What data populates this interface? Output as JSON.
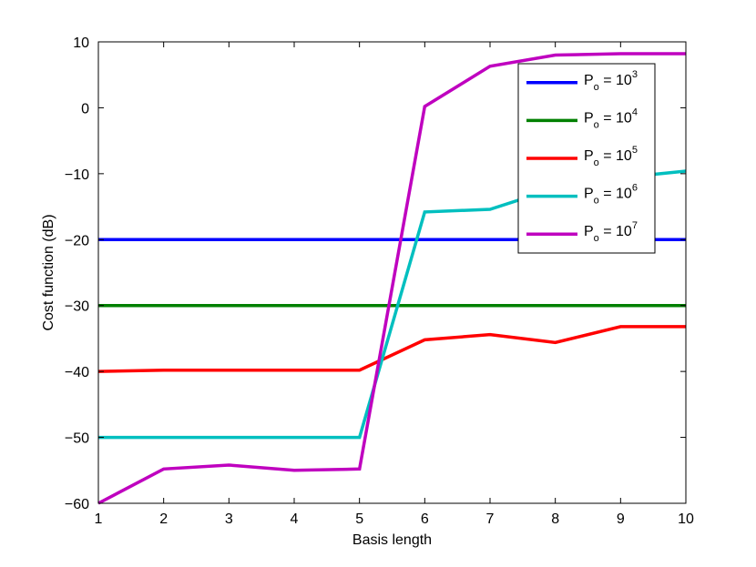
{
  "chart_data": {
    "type": "line",
    "title": "",
    "xlabel": "Basis length",
    "ylabel": "Cost function (dB)",
    "xlim": [
      1,
      10
    ],
    "ylim": [
      -60,
      10
    ],
    "xticks": [
      1,
      2,
      3,
      4,
      5,
      6,
      7,
      8,
      9,
      10
    ],
    "yticks": [
      -60,
      -50,
      -40,
      -30,
      -20,
      -10,
      0,
      10
    ],
    "grid": false,
    "legend_position": "top-right",
    "x": [
      1,
      2,
      3,
      4,
      5,
      6,
      7,
      8,
      9,
      10
    ],
    "series": [
      {
        "name_base": "P",
        "name_sub": "o",
        "name_mid": " = 10",
        "name_sup": "3",
        "color": "#0000ff",
        "values": [
          -20,
          -20,
          -20,
          -20,
          -20,
          -20,
          -20,
          -20,
          -20,
          -20
        ]
      },
      {
        "name_base": "P",
        "name_sub": "o",
        "name_mid": " = 10",
        "name_sup": "4",
        "color": "#008000",
        "values": [
          -30,
          -30,
          -30,
          -30,
          -30,
          -30,
          -30,
          -30,
          -30,
          -30
        ]
      },
      {
        "name_base": "P",
        "name_sub": "o",
        "name_mid": " = 10",
        "name_sup": "5",
        "color": "#ff0000",
        "values": [
          -40,
          -39.8,
          -39.8,
          -39.8,
          -39.8,
          -35.2,
          -34.4,
          -35.6,
          -33.2,
          -33.2
        ]
      },
      {
        "name_base": "P",
        "name_sub": "o",
        "name_mid": " = 10",
        "name_sup": "6",
        "color": "#00bfbf",
        "values": [
          -50,
          -50,
          -50,
          -50,
          -50,
          -15.8,
          -15.4,
          -12.2,
          -10.6,
          -9.6
        ]
      },
      {
        "name_base": "P",
        "name_sub": "o",
        "name_mid": " = 10",
        "name_sup": "7",
        "color": "#bf00bf",
        "values": [
          -60,
          -54.8,
          -54.2,
          -55,
          -54.8,
          0.2,
          6.3,
          8.0,
          8.2,
          8.2
        ]
      }
    ]
  }
}
